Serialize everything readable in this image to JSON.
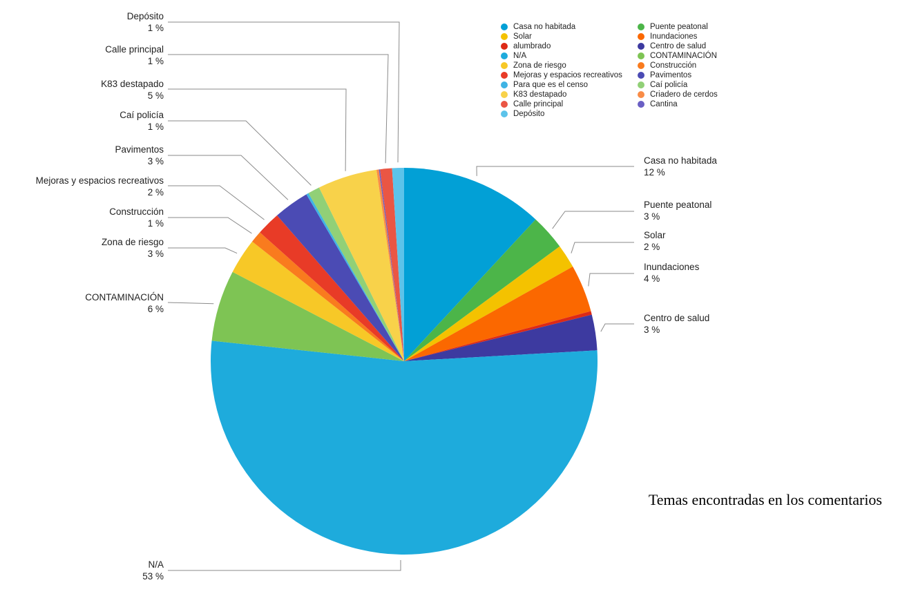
{
  "chart_data": {
    "type": "pie",
    "title": "Temas encontradas en los comentarios",
    "slices": [
      {
        "name": "Casa no habitada",
        "value": 12,
        "label": "12 %",
        "color": "#02a0d6"
      },
      {
        "name": "Puente peatonal",
        "value": 3,
        "label": "3 %",
        "color": "#4cb549"
      },
      {
        "name": "Solar",
        "value": 2,
        "label": "2 %",
        "color": "#f4c200"
      },
      {
        "name": "Inundaciones",
        "value": 4,
        "label": "4 %",
        "color": "#fb6800"
      },
      {
        "name": "alumbrado",
        "value": 0.3,
        "label": "",
        "color": "#dd2a16"
      },
      {
        "name": "Centro de salud",
        "value": 3,
        "label": "3 %",
        "color": "#3d3aa0"
      },
      {
        "name": "N/A",
        "value": 53,
        "label": "53 %",
        "color": "#1eabdc"
      },
      {
        "name": "CONTAMINACIÓN",
        "value": 6,
        "label": "6 %",
        "color": "#7ec454"
      },
      {
        "name": "Zona de riesgo",
        "value": 3,
        "label": "3 %",
        "color": "#f7c827"
      },
      {
        "name": "Construcción",
        "value": 1,
        "label": "1 %",
        "color": "#f97b1e"
      },
      {
        "name": "Mejoras y espacios recreativos",
        "value": 2,
        "label": "2 %",
        "color": "#e83b27"
      },
      {
        "name": "Pavimentos",
        "value": 3,
        "label": "3 %",
        "color": "#4b4bb4"
      },
      {
        "name": "Para que es el censo",
        "value": 0.2,
        "label": "",
        "color": "#3fb4e4"
      },
      {
        "name": "Caí policía",
        "value": 1,
        "label": "1 %",
        "color": "#91d077"
      },
      {
        "name": "K83 destapado",
        "value": 5,
        "label": "5 %",
        "color": "#f8d24a"
      },
      {
        "name": "Criadero de cerdos",
        "value": 0.2,
        "label": "",
        "color": "#f98c47"
      },
      {
        "name": "Cantina",
        "value": 0.1,
        "label": "",
        "color": "#6a5fc4"
      },
      {
        "name": "Calle principal",
        "value": 1,
        "label": "1 %",
        "color": "#ea5644"
      },
      {
        "name": "Depósito",
        "value": 1,
        "label": "1 %",
        "color": "#5cc3ea"
      }
    ],
    "legend": {
      "placement": "top-right",
      "columns": [
        [
          "Casa no habitada",
          "Solar",
          "alumbrado",
          "N/A",
          "Zona de riesgo",
          "Mejoras y espacios recreativos",
          "Para que es el censo",
          "K83 destapado",
          "Calle principal",
          "Depósito"
        ],
        [
          "Puente peatonal",
          "Inundaciones",
          "Centro de salud",
          "CONTAMINACIÓN",
          "Construcción",
          "Pavimentos",
          "Caí policía",
          "Criadero de cerdos",
          "Cantina"
        ]
      ]
    }
  }
}
